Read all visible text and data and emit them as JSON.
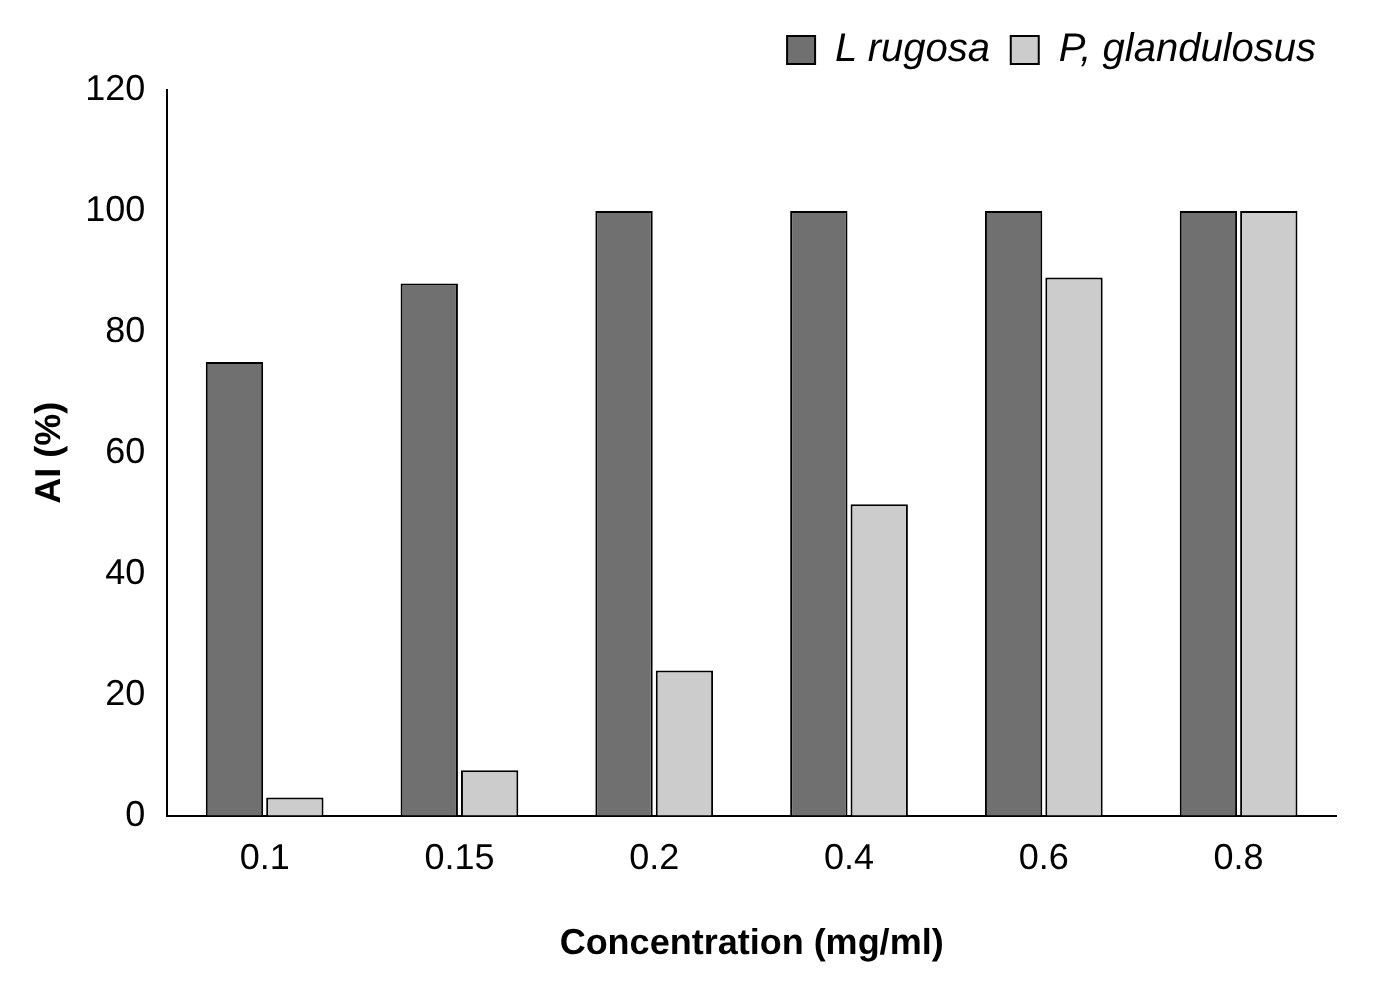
{
  "chart_data": {
    "type": "bar",
    "xlabel": "Concentration (mg/ml)",
    "ylabel": "AI (%)",
    "categories": [
      "0.1",
      "0.15",
      "0.2",
      "0.4",
      "0.6",
      "0.8"
    ],
    "series": [
      {
        "name": "L rugosa",
        "color": "#707070",
        "values": [
          75,
          88,
          100,
          100,
          100,
          100
        ]
      },
      {
        "name": "P, glandulosus",
        "color": "#cccccc",
        "values": [
          3,
          7.5,
          24,
          51.5,
          89,
          100
        ]
      }
    ],
    "ylim": [
      0,
      120
    ],
    "yticks": [
      0,
      20,
      40,
      60,
      80,
      100,
      120
    ],
    "grid": false,
    "legend": "top right"
  }
}
